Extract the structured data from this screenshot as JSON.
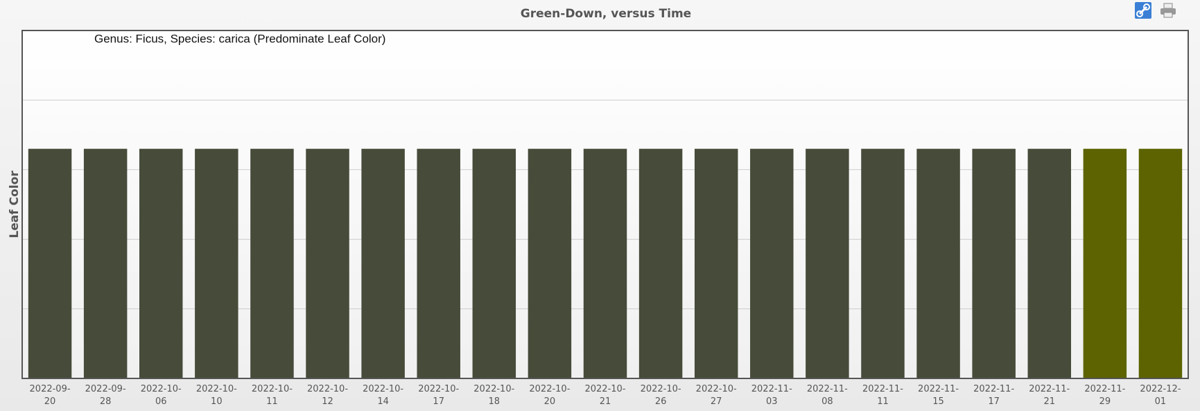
{
  "chart_data": {
    "type": "bar",
    "title": "Green-Down, versus Time",
    "y_label": "Leaf Color",
    "annotation": "Genus: Ficus, Species: carica (Predominate Leaf Color)",
    "categories": [
      "2022-09-20",
      "2022-09-28",
      "2022-10-06",
      "2022-10-10",
      "2022-10-11",
      "2022-10-12",
      "2022-10-14",
      "2022-10-17",
      "2022-10-18",
      "2022-10-20",
      "2022-10-21",
      "2022-10-26",
      "2022-10-27",
      "2022-11-03",
      "2022-11-08",
      "2022-11-11",
      "2022-11-15",
      "2022-11-17",
      "2022-11-21",
      "2022-11-29",
      "2022-12-01"
    ],
    "values": [
      3.3,
      3.3,
      3.3,
      3.3,
      3.3,
      3.3,
      3.3,
      3.3,
      3.3,
      3.3,
      3.3,
      3.3,
      3.3,
      3.3,
      3.3,
      3.3,
      3.3,
      3.3,
      3.3,
      3.3,
      3.3
    ],
    "colors": [
      "#464b3a",
      "#464b3a",
      "#464b3a",
      "#464b3a",
      "#464b3a",
      "#464b3a",
      "#464b3a",
      "#464b3a",
      "#464b3a",
      "#464b3a",
      "#464b3a",
      "#464b3a",
      "#464b3a",
      "#464b3a",
      "#464b3a",
      "#464b3a",
      "#464b3a",
      "#464b3a",
      "#464b3a",
      "#5c6300",
      "#5c6300"
    ],
    "ylim": [
      0,
      5
    ],
    "yticks": [
      0,
      1,
      2,
      3,
      4,
      5
    ],
    "grid": true
  }
}
